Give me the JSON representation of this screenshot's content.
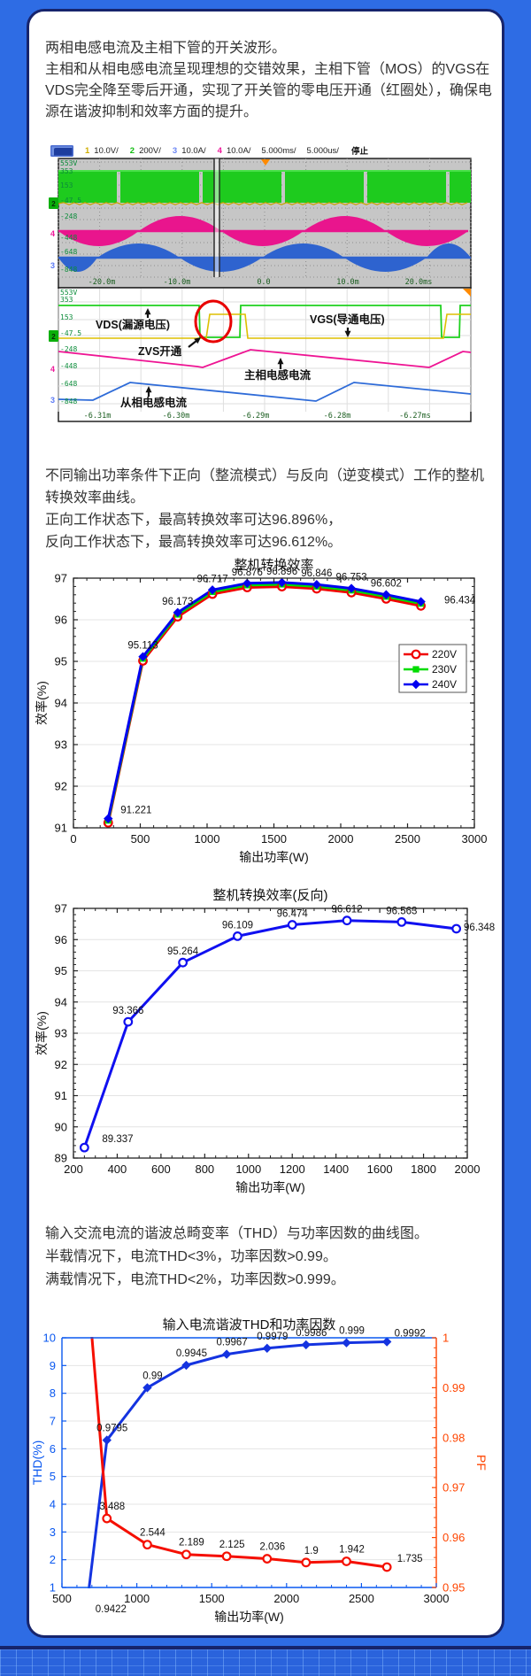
{
  "page": {
    "background": "#2e6ce4",
    "card_border": "#17246c"
  },
  "intro": {
    "line1": "两相电感电流及主相下管的开关波形。",
    "para": "主相和从相电感电流呈现理想的交错效果，主相下管（MOS）的VGS在VDS完全降至零后开通，实现了开关管的零电压开通（红圈处），确保电源在谐波抑制和效率方面的提升。"
  },
  "scope": {
    "header": {
      "channels": [
        {
          "num": "1",
          "color": "#cfae00",
          "scale": "10.0V/"
        },
        {
          "num": "2",
          "color": "#12bd12",
          "scale": "200V/"
        },
        {
          "num": "3",
          "color": "#6b86f5",
          "scale": "10.0A/"
        },
        {
          "num": "4",
          "color": "#ef189b",
          "scale": "10.0A/"
        }
      ],
      "time1": "5.000ms/",
      "time2": "5.000us/",
      "status": "停止"
    },
    "volt_labels": [
      "553V",
      "353",
      "153",
      "-47.5",
      "-248",
      "-448",
      "-648",
      "-848"
    ],
    "panel1_time": [
      "-20.0m",
      "-10.0m",
      "0.0",
      "10.0m",
      "20.0ms"
    ],
    "panel2_time": [
      "-6.31m",
      "-6.30m",
      "-6.29m",
      "-6.28m",
      "-6.27ms"
    ],
    "annotations": {
      "vds": "VDS(漏源电压)",
      "vgs": "VGS(导通电压)",
      "zvs": "ZVS开通",
      "main_current": "主相电感电流",
      "slave_current": "从相电感电流"
    },
    "channel_markers": {
      "ch2": "2",
      "ch3": "3",
      "ch4": "4"
    }
  },
  "efficiency_text": {
    "para": "不同输出功率条件下正向（整流模式）与反向（逆变模式）工作的整机转换效率曲线。",
    "line2": "正向工作状态下，最高转换效率可达96.896%，",
    "line3": "反向工作状态下，最高转换效率可达96.612%。"
  },
  "thd_text": {
    "line1": "输入交流电流的谐波总畸变率（THD）与功率因数的曲线图。",
    "line2": "半载情况下，电流THD<3%，功率因数>0.99。",
    "line3": "满载情况下，电流THD<2%，功率因数>0.999。"
  },
  "chart_data": [
    {
      "id": "chart1",
      "type": "line",
      "title": "整机转换效率",
      "xlabel": "输出功率(W)",
      "ylabel": "效率(%)",
      "xlim": [
        0,
        3000
      ],
      "xticks": [
        0,
        500,
        1000,
        1500,
        2000,
        2500,
        3000
      ],
      "ylim": [
        91,
        97
      ],
      "yticks": [
        91,
        92,
        93,
        94,
        95,
        96,
        97
      ],
      "x": [
        260,
        520,
        780,
        1040,
        1300,
        1560,
        1820,
        2080,
        2340,
        2600
      ],
      "series": [
        {
          "name": "220V",
          "color": "#f00000",
          "marker": "circle",
          "values": [
            91.121,
            95.013,
            96.073,
            96.617,
            96.776,
            96.796,
            96.746,
            96.653,
            96.502,
            96.334
          ]
        },
        {
          "name": "230V",
          "color": "#00dc00",
          "marker": "square",
          "values": [
            91.176,
            95.068,
            96.128,
            96.672,
            96.831,
            96.851,
            96.801,
            96.708,
            96.557,
            96.389
          ]
        },
        {
          "name": "240V",
          "color": "#0000f0",
          "marker": "diamond",
          "values": [
            91.221,
            95.113,
            96.173,
            96.717,
            96.876,
            96.896,
            96.846,
            96.753,
            96.602,
            96.434
          ]
        }
      ],
      "point_labels": [
        "91.221",
        "95.113",
        "96.173",
        "96.717",
        "96.876",
        "96.896",
        "96.846",
        "96.753",
        "96.602",
        "96.434"
      ],
      "legend": true,
      "legend_position": "right-middle",
      "grid": "horizontal"
    },
    {
      "id": "chart2",
      "type": "line",
      "title": "整机转换效率(反向)",
      "xlabel": "输出功率(W)",
      "ylabel": "效率(%)",
      "xlim": [
        200,
        2000
      ],
      "xticks": [
        200,
        400,
        600,
        800,
        1000,
        1200,
        1400,
        1600,
        1800,
        2000
      ],
      "ylim": [
        89,
        97
      ],
      "yticks": [
        89,
        90,
        91,
        92,
        93,
        94,
        95,
        96,
        97
      ],
      "x": [
        250,
        450,
        700,
        950,
        1200,
        1450,
        1700,
        1950
      ],
      "series": [
        {
          "name": "反向效率",
          "color": "#1010f0",
          "marker": "circle",
          "values": [
            89.337,
            93.366,
            95.264,
            96.109,
            96.474,
            96.612,
            96.563,
            96.348
          ]
        }
      ],
      "point_labels": [
        "89.337",
        "93.366",
        "95.264",
        "96.109",
        "96.474",
        "96.612",
        "96.563",
        "96.348"
      ],
      "grid": "horizontal"
    },
    {
      "id": "chart3",
      "type": "line",
      "title": "输入电流谐波THD和功率因数",
      "xlabel": "输出功率(W)",
      "xlim": [
        500,
        3000
      ],
      "xticks": [
        500,
        1000,
        1500,
        2000,
        2500,
        3000
      ],
      "left_axis": {
        "label": "THD(%)",
        "color": "#0a58f0",
        "lim": [
          1,
          10
        ],
        "ticks": [
          1,
          2,
          3,
          4,
          5,
          6,
          7,
          8,
          9,
          10
        ]
      },
      "right_axis": {
        "label": "PF",
        "color": "#ff4500",
        "lim": [
          0.95,
          1
        ],
        "ticks": [
          0.95,
          0.96,
          0.97,
          0.98,
          0.99,
          1
        ]
      },
      "x": [
        650,
        800,
        1070,
        1330,
        1600,
        1870,
        2130,
        2400,
        2670
      ],
      "series": [
        {
          "name": "PF",
          "axis": "right",
          "color": "#1433e0",
          "marker": "diamond",
          "values": [
            0.9422,
            0.9795,
            0.99,
            0.9945,
            0.9967,
            0.9979,
            0.9986,
            0.999,
            0.9992
          ],
          "labels": [
            "0.9422",
            "0.9795",
            "0.99",
            "0.9945",
            "0.9967",
            "0.9979",
            "0.9986",
            "0.999",
            "0.9992"
          ]
        },
        {
          "name": "THD",
          "axis": "left",
          "color": "#f50f00",
          "marker": "circle",
          "values": [
            13.3,
            3.488,
            2.544,
            2.189,
            2.125,
            2.036,
            1.9,
            1.942,
            1.735
          ],
          "labels": [
            "",
            "3.488",
            "2.544",
            "2.189",
            "2.125",
            "2.036",
            "1.9",
            "1.942",
            "1.735"
          ]
        }
      ],
      "grid": "horizontal"
    }
  ]
}
